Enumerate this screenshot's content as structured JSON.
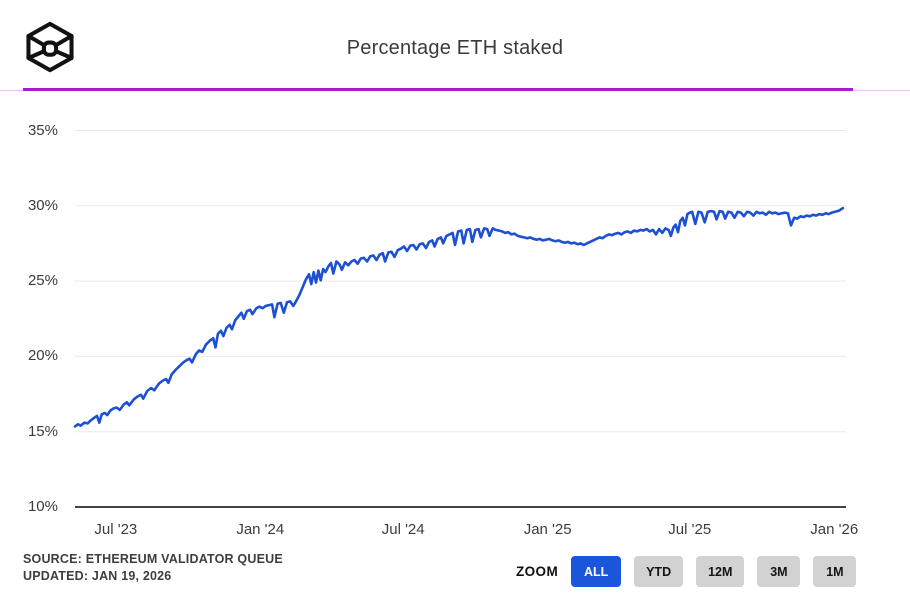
{
  "header": {
    "title": "Percentage ETH staked",
    "logo": "cube-block-logo"
  },
  "colors": {
    "line": "#1d50d2",
    "divider": "#a420c6",
    "divider_light": "#e7c3ef",
    "grid": "#eaeaea",
    "axis": "#424242",
    "active_button": "#1a56db",
    "button_bg": "#d2d2d2"
  },
  "footer": {
    "source_line1": "SOURCE: ETHEREUM VALIDATOR QUEUE",
    "source_line2": "UPDATED: JAN 19, 2026",
    "zoom_label": "ZOOM",
    "zoom_buttons": [
      {
        "label": "ALL",
        "active": true
      },
      {
        "label": "YTD",
        "active": false
      },
      {
        "label": "12M",
        "active": false
      },
      {
        "label": "3M",
        "active": false
      },
      {
        "label": "1M",
        "active": false
      }
    ]
  },
  "chart_data": {
    "type": "line",
    "title": "Percentage ETH staked",
    "series_name": "ETH staked (%)",
    "xlabel": "",
    "ylabel": "",
    "grid": true,
    "legend": false,
    "xlim": [
      "2023-05-10",
      "2026-01-16"
    ],
    "ylim": [
      10,
      35
    ],
    "y_ticks": [
      {
        "label": "35%",
        "value": 35
      },
      {
        "label": "30%",
        "value": 30
      },
      {
        "label": "25%",
        "value": 25
      },
      {
        "label": "20%",
        "value": 20
      },
      {
        "label": "15%",
        "value": 15
      },
      {
        "label": "10%",
        "value": 10
      }
    ],
    "x_ticks": [
      {
        "label": "Jul '23",
        "date": "2023-07-01"
      },
      {
        "label": "Jan '24",
        "date": "2024-01-01"
      },
      {
        "label": "Jul '24",
        "date": "2024-07-01"
      },
      {
        "label": "Jan '25",
        "date": "2025-01-01"
      },
      {
        "label": "Jul '25",
        "date": "2025-07-01"
      },
      {
        "label": "Jan '26",
        "date": "2026-01-01"
      }
    ],
    "points": [
      [
        "2023-05-10",
        15.35
      ],
      [
        "2023-05-14",
        15.5
      ],
      [
        "2023-05-17",
        15.4
      ],
      [
        "2023-05-22",
        15.6
      ],
      [
        "2023-05-26",
        15.55
      ],
      [
        "2023-05-30",
        15.75
      ],
      [
        "2023-06-03",
        15.9
      ],
      [
        "2023-06-07",
        16.05
      ],
      [
        "2023-06-10",
        15.6
      ],
      [
        "2023-06-13",
        16.15
      ],
      [
        "2023-06-17",
        16.25
      ],
      [
        "2023-06-20",
        16.1
      ],
      [
        "2023-06-24",
        16.4
      ],
      [
        "2023-06-28",
        16.55
      ],
      [
        "2023-07-02",
        16.6
      ],
      [
        "2023-07-06",
        16.45
      ],
      [
        "2023-07-11",
        16.8
      ],
      [
        "2023-07-15",
        16.95
      ],
      [
        "2023-07-18",
        16.75
      ],
      [
        "2023-07-24",
        17.15
      ],
      [
        "2023-07-29",
        17.35
      ],
      [
        "2023-08-02",
        17.45
      ],
      [
        "2023-08-05",
        17.2
      ],
      [
        "2023-08-10",
        17.7
      ],
      [
        "2023-08-15",
        17.9
      ],
      [
        "2023-08-19",
        17.75
      ],
      [
        "2023-08-25",
        18.2
      ],
      [
        "2023-08-30",
        18.4
      ],
      [
        "2023-09-03",
        18.5
      ],
      [
        "2023-09-06",
        18.25
      ],
      [
        "2023-09-10",
        18.8
      ],
      [
        "2023-09-15",
        19.1
      ],
      [
        "2023-09-20",
        19.35
      ],
      [
        "2023-09-25",
        19.6
      ],
      [
        "2023-09-29",
        19.75
      ],
      [
        "2023-10-03",
        19.85
      ],
      [
        "2023-10-06",
        19.6
      ],
      [
        "2023-10-11",
        20.15
      ],
      [
        "2023-10-15",
        20.4
      ],
      [
        "2023-10-19",
        20.3
      ],
      [
        "2023-10-24",
        20.8
      ],
      [
        "2023-10-29",
        21.05
      ],
      [
        "2023-11-02",
        21.2
      ],
      [
        "2023-11-05",
        20.6
      ],
      [
        "2023-11-08",
        21.5
      ],
      [
        "2023-11-12",
        21.7
      ],
      [
        "2023-11-15",
        21.35
      ],
      [
        "2023-11-19",
        21.9
      ],
      [
        "2023-11-23",
        22.1
      ],
      [
        "2023-11-26",
        21.8
      ],
      [
        "2023-11-30",
        22.4
      ],
      [
        "2023-12-04",
        22.65
      ],
      [
        "2023-12-08",
        22.9
      ],
      [
        "2023-12-11",
        22.5
      ],
      [
        "2023-12-15",
        23.0
      ],
      [
        "2023-12-19",
        23.1
      ],
      [
        "2023-12-22",
        22.8
      ],
      [
        "2023-12-27",
        23.2
      ],
      [
        "2023-12-31",
        23.3
      ],
      [
        "2024-01-04",
        23.2
      ],
      [
        "2024-01-08",
        23.35
      ],
      [
        "2024-01-12",
        23.4
      ],
      [
        "2024-01-16",
        23.45
      ],
      [
        "2024-01-19",
        22.6
      ],
      [
        "2024-01-23",
        23.5
      ],
      [
        "2024-01-27",
        23.55
      ],
      [
        "2024-01-31",
        22.9
      ],
      [
        "2024-02-04",
        23.6
      ],
      [
        "2024-02-08",
        23.65
      ],
      [
        "2024-02-12",
        23.35
      ],
      [
        "2024-02-16",
        23.7
      ],
      [
        "2024-02-20",
        24.1
      ],
      [
        "2024-02-24",
        24.6
      ],
      [
        "2024-02-28",
        25.1
      ],
      [
        "2024-03-03",
        25.45
      ],
      [
        "2024-03-06",
        24.8
      ],
      [
        "2024-03-09",
        25.6
      ],
      [
        "2024-03-12",
        24.9
      ],
      [
        "2024-03-15",
        25.7
      ],
      [
        "2024-03-18",
        25.05
      ],
      [
        "2024-03-21",
        25.8
      ],
      [
        "2024-03-24",
        25.6
      ],
      [
        "2024-03-28",
        26.0
      ],
      [
        "2024-03-31",
        26.2
      ],
      [
        "2024-04-03",
        25.5
      ],
      [
        "2024-04-07",
        26.3
      ],
      [
        "2024-04-11",
        26.1
      ],
      [
        "2024-04-14",
        25.75
      ],
      [
        "2024-04-18",
        26.25
      ],
      [
        "2024-04-22",
        26.05
      ],
      [
        "2024-04-26",
        26.3
      ],
      [
        "2024-04-30",
        26.4
      ],
      [
        "2024-05-04",
        26.15
      ],
      [
        "2024-05-08",
        26.5
      ],
      [
        "2024-05-12",
        26.55
      ],
      [
        "2024-05-16",
        26.3
      ],
      [
        "2024-05-20",
        26.65
      ],
      [
        "2024-05-24",
        26.7
      ],
      [
        "2024-05-28",
        26.4
      ],
      [
        "2024-06-01",
        26.75
      ],
      [
        "2024-06-05",
        26.85
      ],
      [
        "2024-06-08",
        26.3
      ],
      [
        "2024-06-12",
        26.9
      ],
      [
        "2024-06-16",
        26.95
      ],
      [
        "2024-06-20",
        26.6
      ],
      [
        "2024-06-24",
        27.05
      ],
      [
        "2024-06-28",
        27.15
      ],
      [
        "2024-07-02",
        27.3
      ],
      [
        "2024-07-06",
        27.0
      ],
      [
        "2024-07-10",
        27.35
      ],
      [
        "2024-07-14",
        27.4
      ],
      [
        "2024-07-18",
        27.1
      ],
      [
        "2024-07-22",
        27.45
      ],
      [
        "2024-07-26",
        27.5
      ],
      [
        "2024-07-30",
        27.2
      ],
      [
        "2024-08-03",
        27.6
      ],
      [
        "2024-08-07",
        27.7
      ],
      [
        "2024-08-10",
        27.3
      ],
      [
        "2024-08-14",
        27.8
      ],
      [
        "2024-08-18",
        27.9
      ],
      [
        "2024-08-21",
        27.5
      ],
      [
        "2024-08-25",
        28.0
      ],
      [
        "2024-08-29",
        28.1
      ],
      [
        "2024-09-02",
        28.2
      ],
      [
        "2024-09-05",
        27.4
      ],
      [
        "2024-09-09",
        28.3
      ],
      [
        "2024-09-13",
        28.35
      ],
      [
        "2024-09-16",
        27.5
      ],
      [
        "2024-09-20",
        28.4
      ],
      [
        "2024-09-24",
        28.45
      ],
      [
        "2024-09-27",
        27.6
      ],
      [
        "2024-10-01",
        28.4
      ],
      [
        "2024-10-05",
        28.45
      ],
      [
        "2024-10-08",
        27.9
      ],
      [
        "2024-10-12",
        28.5
      ],
      [
        "2024-10-16",
        28.45
      ],
      [
        "2024-10-19",
        28.0
      ],
      [
        "2024-10-23",
        28.5
      ],
      [
        "2024-10-27",
        28.4
      ],
      [
        "2024-10-31",
        28.35
      ],
      [
        "2024-11-04",
        28.3
      ],
      [
        "2024-11-08",
        28.2
      ],
      [
        "2024-11-12",
        28.25
      ],
      [
        "2024-11-16",
        28.1
      ],
      [
        "2024-11-20",
        28.15
      ],
      [
        "2024-11-24",
        28.0
      ],
      [
        "2024-11-28",
        27.95
      ],
      [
        "2024-12-02",
        27.9
      ],
      [
        "2024-12-06",
        27.85
      ],
      [
        "2024-12-10",
        27.9
      ],
      [
        "2024-12-14",
        27.8
      ],
      [
        "2024-12-18",
        27.75
      ],
      [
        "2024-12-22",
        27.8
      ],
      [
        "2024-12-26",
        27.7
      ],
      [
        "2024-12-30",
        27.75
      ],
      [
        "2025-01-03",
        27.8
      ],
      [
        "2025-01-07",
        27.7
      ],
      [
        "2025-01-11",
        27.65
      ],
      [
        "2025-01-15",
        27.7
      ],
      [
        "2025-01-19",
        27.6
      ],
      [
        "2025-01-23",
        27.55
      ],
      [
        "2025-01-27",
        27.6
      ],
      [
        "2025-01-31",
        27.5
      ],
      [
        "2025-02-04",
        27.55
      ],
      [
        "2025-02-08",
        27.45
      ],
      [
        "2025-02-12",
        27.5
      ],
      [
        "2025-02-16",
        27.4
      ],
      [
        "2025-02-20",
        27.5
      ],
      [
        "2025-02-24",
        27.6
      ],
      [
        "2025-02-28",
        27.7
      ],
      [
        "2025-03-04",
        27.8
      ],
      [
        "2025-03-08",
        27.9
      ],
      [
        "2025-03-12",
        27.85
      ],
      [
        "2025-03-16",
        28.0
      ],
      [
        "2025-03-20",
        28.1
      ],
      [
        "2025-03-24",
        28.05
      ],
      [
        "2025-03-28",
        28.15
      ],
      [
        "2025-04-01",
        28.2
      ],
      [
        "2025-04-05",
        28.1
      ],
      [
        "2025-04-09",
        28.25
      ],
      [
        "2025-04-13",
        28.3
      ],
      [
        "2025-04-17",
        28.2
      ],
      [
        "2025-04-21",
        28.35
      ],
      [
        "2025-04-25",
        28.3
      ],
      [
        "2025-04-29",
        28.4
      ],
      [
        "2025-05-03",
        28.35
      ],
      [
        "2025-05-07",
        28.45
      ],
      [
        "2025-05-11",
        28.3
      ],
      [
        "2025-05-15",
        28.4
      ],
      [
        "2025-05-19",
        28.1
      ],
      [
        "2025-05-23",
        28.45
      ],
      [
        "2025-05-27",
        28.2
      ],
      [
        "2025-05-31",
        28.5
      ],
      [
        "2025-06-04",
        28.4
      ],
      [
        "2025-06-07",
        28.0
      ],
      [
        "2025-06-10",
        28.55
      ],
      [
        "2025-06-13",
        28.75
      ],
      [
        "2025-06-16",
        28.25
      ],
      [
        "2025-06-19",
        29.0
      ],
      [
        "2025-06-22",
        29.2
      ],
      [
        "2025-06-25",
        28.7
      ],
      [
        "2025-06-28",
        29.45
      ],
      [
        "2025-07-01",
        29.55
      ],
      [
        "2025-07-04",
        29.6
      ],
      [
        "2025-07-08",
        28.8
      ],
      [
        "2025-07-12",
        29.6
      ],
      [
        "2025-07-16",
        29.55
      ],
      [
        "2025-07-20",
        28.9
      ],
      [
        "2025-07-24",
        29.6
      ],
      [
        "2025-07-28",
        29.65
      ],
      [
        "2025-08-01",
        29.6
      ],
      [
        "2025-08-04",
        29.1
      ],
      [
        "2025-08-08",
        29.65
      ],
      [
        "2025-08-12",
        29.6
      ],
      [
        "2025-08-15",
        29.15
      ],
      [
        "2025-08-19",
        29.6
      ],
      [
        "2025-08-23",
        29.55
      ],
      [
        "2025-08-27",
        29.2
      ],
      [
        "2025-08-31",
        29.6
      ],
      [
        "2025-09-04",
        29.55
      ],
      [
        "2025-09-08",
        29.3
      ],
      [
        "2025-09-12",
        29.6
      ],
      [
        "2025-09-16",
        29.55
      ],
      [
        "2025-09-20",
        29.35
      ],
      [
        "2025-09-24",
        29.6
      ],
      [
        "2025-09-28",
        29.5
      ],
      [
        "2025-10-02",
        29.55
      ],
      [
        "2025-10-06",
        29.4
      ],
      [
        "2025-10-10",
        29.6
      ],
      [
        "2025-10-14",
        29.5
      ],
      [
        "2025-10-18",
        29.55
      ],
      [
        "2025-10-22",
        29.45
      ],
      [
        "2025-10-26",
        29.5
      ],
      [
        "2025-10-30",
        29.55
      ],
      [
        "2025-11-03",
        29.5
      ],
      [
        "2025-11-07",
        28.7
      ],
      [
        "2025-11-11",
        29.2
      ],
      [
        "2025-11-15",
        29.15
      ],
      [
        "2025-11-19",
        29.3
      ],
      [
        "2025-11-23",
        29.25
      ],
      [
        "2025-11-27",
        29.35
      ],
      [
        "2025-12-01",
        29.3
      ],
      [
        "2025-12-05",
        29.4
      ],
      [
        "2025-12-09",
        29.35
      ],
      [
        "2025-12-13",
        29.45
      ],
      [
        "2025-12-17",
        29.4
      ],
      [
        "2025-12-21",
        29.5
      ],
      [
        "2025-12-25",
        29.45
      ],
      [
        "2025-12-29",
        29.55
      ],
      [
        "2026-01-02",
        29.6
      ],
      [
        "2026-01-05",
        29.65
      ],
      [
        "2026-01-08",
        29.7
      ],
      [
        "2026-01-10",
        29.78
      ],
      [
        "2026-01-12",
        29.85
      ]
    ]
  }
}
